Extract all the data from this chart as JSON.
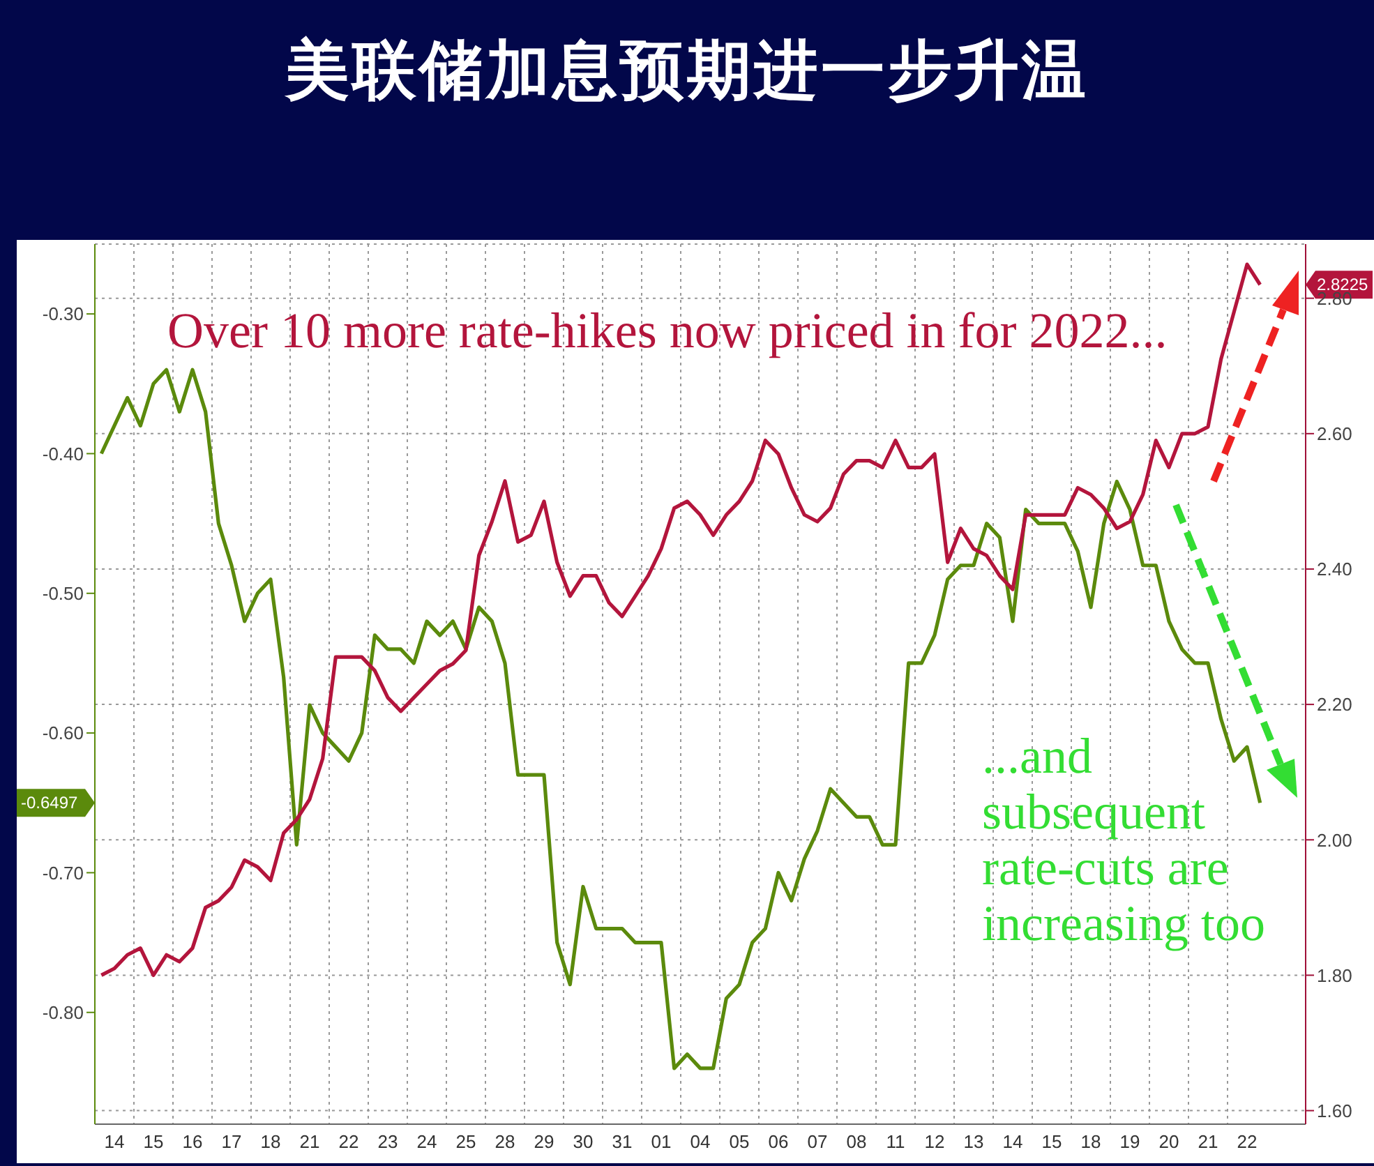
{
  "chart_data": {
    "type": "line",
    "title": "美联储加息预期进一步升温",
    "annotations": [
      "Over 10 more rate-hikes now priced in for 2022...",
      "...and subsequent rate-cuts are increasing too",
      "-0.6497",
      "2.8225"
    ],
    "categories": [
      null,
      "14",
      null,
      null,
      "15",
      null,
      null,
      "16",
      null,
      null,
      "17",
      null,
      null,
      "18",
      null,
      null,
      "21",
      null,
      null,
      "22",
      null,
      null,
      "23",
      null,
      null,
      "24",
      null,
      null,
      "25",
      null,
      null,
      "28",
      null,
      null,
      "29",
      null,
      null,
      "30",
      null,
      null,
      "31",
      null,
      null,
      "01",
      null,
      null,
      "04",
      null,
      null,
      "05",
      null,
      null,
      "06",
      null,
      null,
      "07",
      null,
      null,
      "08",
      null,
      null,
      "11",
      null,
      null,
      "12",
      null,
      null,
      "13",
      null,
      null,
      "14",
      null,
      null,
      "15",
      null,
      null,
      "18",
      null,
      null,
      "19",
      null,
      null,
      "20",
      null,
      null,
      "21",
      null,
      null,
      "22",
      null,
      null,
      null,
      null
    ],
    "ylim": [
      -0.88,
      -0.25
    ],
    "yticks": [
      {
        "value": -0.3,
        "label": "-0.30"
      },
      {
        "value": -0.4,
        "label": "-0.40"
      },
      {
        "value": -0.5,
        "label": "-0.50"
      },
      {
        "value": -0.6,
        "label": "-0.60"
      },
      {
        "value": -0.7,
        "label": "-0.70"
      },
      {
        "value": -0.8,
        "label": "-0.80"
      }
    ],
    "y2lim": [
      1.58,
      2.88
    ],
    "y2ticks": [
      {
        "value": 1.6,
        "label": "1.60"
      },
      {
        "value": 1.8,
        "label": "1.80"
      },
      {
        "value": 2.0,
        "label": "2.00"
      },
      {
        "value": 2.2,
        "label": "2.20"
      },
      {
        "value": 2.4,
        "label": "2.40"
      },
      {
        "value": 2.6,
        "label": "2.60"
      },
      {
        "value": 2.8,
        "label": "2.80"
      }
    ],
    "grid": true,
    "series": [
      {
        "color": "#5b8a0c",
        "values": [
          -0.4,
          -0.38,
          -0.36,
          -0.38,
          -0.35,
          -0.34,
          -0.37,
          -0.34,
          -0.37,
          -0.45,
          -0.48,
          -0.52,
          -0.5,
          -0.49,
          -0.56,
          -0.68,
          -0.58,
          -0.6,
          -0.61,
          -0.62,
          -0.6,
          -0.53,
          -0.54,
          -0.54,
          -0.55,
          -0.52,
          -0.53,
          -0.52,
          -0.54,
          -0.51,
          -0.52,
          -0.55,
          -0.63,
          -0.63,
          -0.63,
          -0.75,
          -0.78,
          -0.71,
          -0.74,
          -0.74,
          -0.74,
          -0.75,
          -0.75,
          -0.75,
          -0.84,
          -0.83,
          -0.84,
          -0.84,
          -0.79,
          -0.78,
          -0.75,
          -0.74,
          -0.7,
          -0.72,
          -0.69,
          -0.67,
          -0.64,
          -0.65,
          -0.66,
          -0.66,
          -0.68,
          -0.68,
          -0.55,
          -0.55,
          -0.53,
          -0.49,
          -0.48,
          -0.48,
          -0.45,
          -0.46,
          -0.52,
          -0.44,
          -0.45,
          -0.45,
          -0.45,
          -0.47,
          -0.51,
          -0.45,
          -0.42,
          -0.44,
          -0.48,
          -0.48,
          -0.52,
          -0.54,
          -0.55,
          -0.55,
          -0.59,
          -0.62,
          -0.61,
          -0.65,
          null,
          null,
          null
        ]
      },
      {
        "color": "#b3153c",
        "axis": "y2",
        "values": [
          1.8,
          1.81,
          1.83,
          1.84,
          1.8,
          1.83,
          1.82,
          1.84,
          1.9,
          1.91,
          1.93,
          1.97,
          1.96,
          1.94,
          2.01,
          2.03,
          2.06,
          2.12,
          2.27,
          2.27,
          2.27,
          2.25,
          2.21,
          2.19,
          2.21,
          2.23,
          2.25,
          2.26,
          2.28,
          2.42,
          2.47,
          2.53,
          2.44,
          2.45,
          2.5,
          2.41,
          2.36,
          2.39,
          2.39,
          2.35,
          2.33,
          2.36,
          2.39,
          2.43,
          2.49,
          2.5,
          2.48,
          2.45,
          2.48,
          2.5,
          2.53,
          2.59,
          2.57,
          2.52,
          2.48,
          2.47,
          2.49,
          2.54,
          2.56,
          2.56,
          2.55,
          2.59,
          2.55,
          2.55,
          2.57,
          2.41,
          2.46,
          2.43,
          2.42,
          2.39,
          2.37,
          2.48,
          2.48,
          2.48,
          2.48,
          2.52,
          2.51,
          2.49,
          2.46,
          2.47,
          2.51,
          2.59,
          2.55,
          2.6,
          2.6,
          2.61,
          2.71,
          2.78,
          2.85,
          2.82,
          null,
          null,
          null
        ]
      }
    ]
  }
}
